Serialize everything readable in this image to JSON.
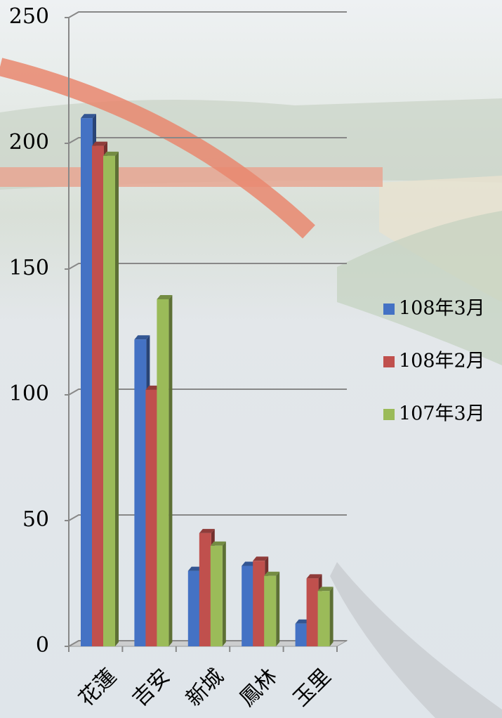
{
  "chart_data": {
    "type": "bar3d",
    "categories": [
      "花蓮",
      "吉安",
      "新城",
      "鳳林",
      "玉里"
    ],
    "series": [
      {
        "name": "108年3月",
        "color": "#4472c4",
        "values": [
          210,
          122,
          30,
          32,
          9
        ]
      },
      {
        "name": "108年2月",
        "color": "#c0504d",
        "values": [
          199,
          102,
          45,
          34,
          27
        ]
      },
      {
        "name": "107年3月",
        "color": "#9bbb59",
        "values": [
          195,
          138,
          40,
          28,
          22
        ]
      }
    ],
    "ylim": [
      0,
      250
    ],
    "yticks": [
      0,
      50,
      100,
      150,
      200,
      250
    ],
    "grid": true,
    "legend": "right"
  }
}
